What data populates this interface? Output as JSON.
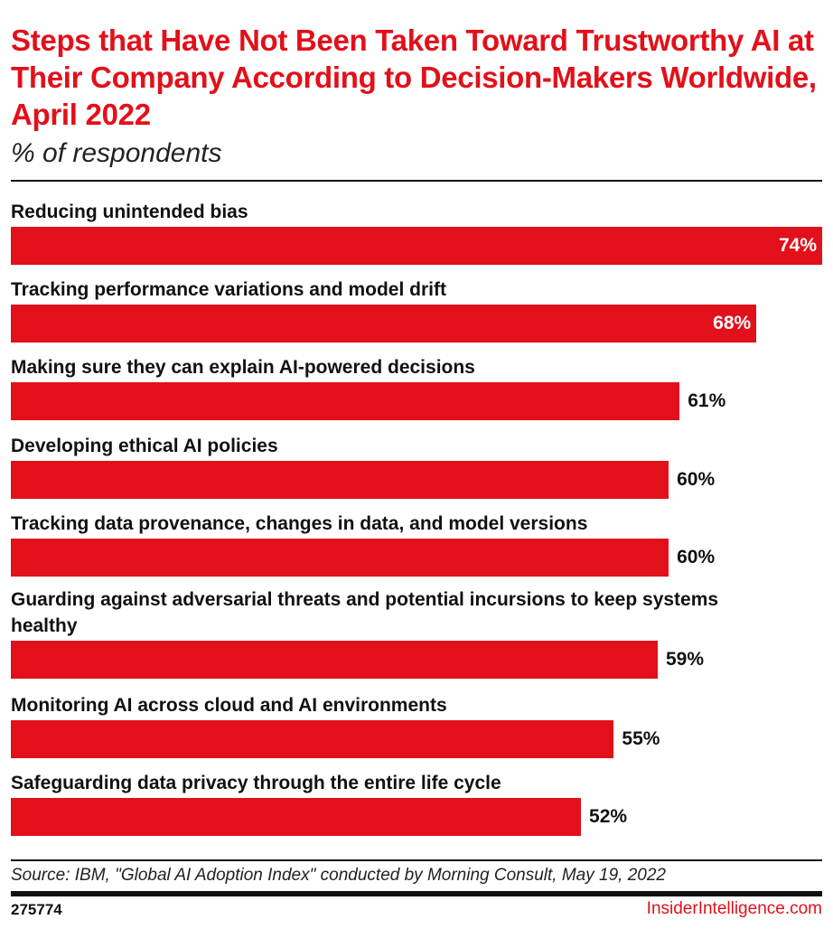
{
  "chart_data": {
    "type": "bar",
    "orientation": "horizontal",
    "title": "Steps that Have Not Been Taken Toward Trustworthy AI at Their Company According to Decision-Makers Worldwide, April 2022",
    "subtitle": "% of respondents",
    "categories": [
      "Reducing unintended bias",
      "Tracking performance variations and model drift",
      "Making sure they can explain AI-powered decisions",
      "Developing ethical AI policies",
      "Tracking data provenance, changes in data, and model versions",
      "Guarding against adversarial threats and potential incursions to keep systems healthy",
      "Monitoring AI across cloud and AI environments",
      "Safeguarding data privacy through the entire life cycle"
    ],
    "values": [
      74,
      68,
      61,
      60,
      60,
      59,
      55,
      52
    ],
    "data_labels": [
      "74%",
      "68%",
      "61%",
      "60%",
      "60%",
      "59%",
      "55%",
      "52%"
    ],
    "xlim": [
      0,
      74
    ],
    "grid": false,
    "bar_color": "#e2101a"
  },
  "footer": {
    "source": "Source: IBM, \"Global AI Adoption Index\" conducted by Morning Consult, May 19, 2022",
    "chart_id": "275774",
    "brand": "InsiderIntelligence.com"
  }
}
